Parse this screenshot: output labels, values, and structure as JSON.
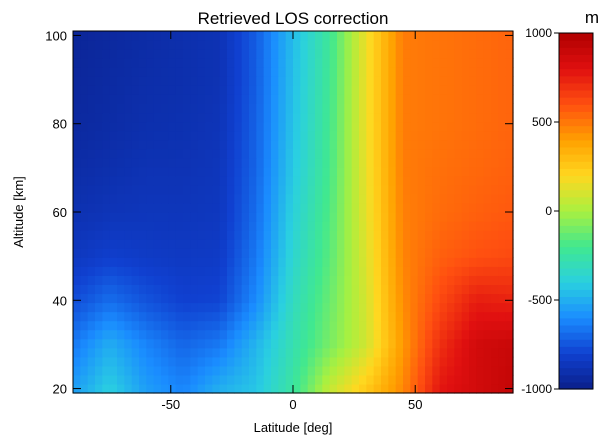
{
  "chart_data": {
    "type": "heatmap",
    "title": "Retrieved LOS correction",
    "xlabel": "Latitude [deg]",
    "ylabel": "Altitude [km]",
    "xlim": [
      -90,
      90
    ],
    "ylim": [
      19,
      101
    ],
    "x_ticks": [
      -50,
      0,
      50
    ],
    "y_ticks": [
      20,
      40,
      60,
      80,
      100
    ],
    "colorbar": {
      "unit": "m",
      "range": [
        -1000,
        1000
      ],
      "ticks": [
        1000,
        500,
        0,
        -500,
        -1000
      ],
      "colormap": [
        "#0a1f8a",
        "#1040d0",
        "#1a8cff",
        "#2ad0e0",
        "#40e890",
        "#a8f040",
        "#ffd820",
        "#ffa000",
        "#ff5010",
        "#e01010",
        "#b00000"
      ]
    },
    "latitudes": [
      -90,
      -75,
      -60,
      -45,
      -30,
      -15,
      0,
      15,
      30,
      45,
      60,
      75,
      90
    ],
    "altitudes": [
      20,
      30,
      40,
      50,
      60,
      70,
      80,
      90,
      100
    ],
    "values": [
      [
        -550,
        -400,
        -550,
        -620,
        -500,
        -430,
        -240,
        60,
        250,
        460,
        780,
        860,
        920
      ],
      [
        -650,
        -500,
        -620,
        -700,
        -650,
        -480,
        -280,
        -90,
        90,
        420,
        700,
        860,
        900
      ],
      [
        -770,
        -680,
        -750,
        -800,
        -790,
        -600,
        -320,
        -120,
        100,
        450,
        620,
        760,
        740
      ],
      [
        -850,
        -810,
        -830,
        -840,
        -830,
        -650,
        -360,
        -150,
        120,
        470,
        560,
        600,
        620
      ],
      [
        -890,
        -870,
        -860,
        -860,
        -850,
        -680,
        -390,
        -170,
        140,
        480,
        530,
        560,
        580
      ],
      [
        -920,
        -900,
        -880,
        -880,
        -860,
        -700,
        -420,
        -190,
        150,
        490,
        520,
        540,
        560
      ],
      [
        -940,
        -920,
        -900,
        -890,
        -870,
        -710,
        -440,
        -200,
        160,
        490,
        510,
        530,
        550
      ],
      [
        -950,
        -930,
        -910,
        -900,
        -880,
        -720,
        -450,
        -210,
        160,
        490,
        510,
        530,
        550
      ],
      [
        -960,
        -940,
        -920,
        -900,
        -880,
        -720,
        -460,
        -220,
        160,
        490,
        510,
        530,
        550
      ]
    ]
  }
}
